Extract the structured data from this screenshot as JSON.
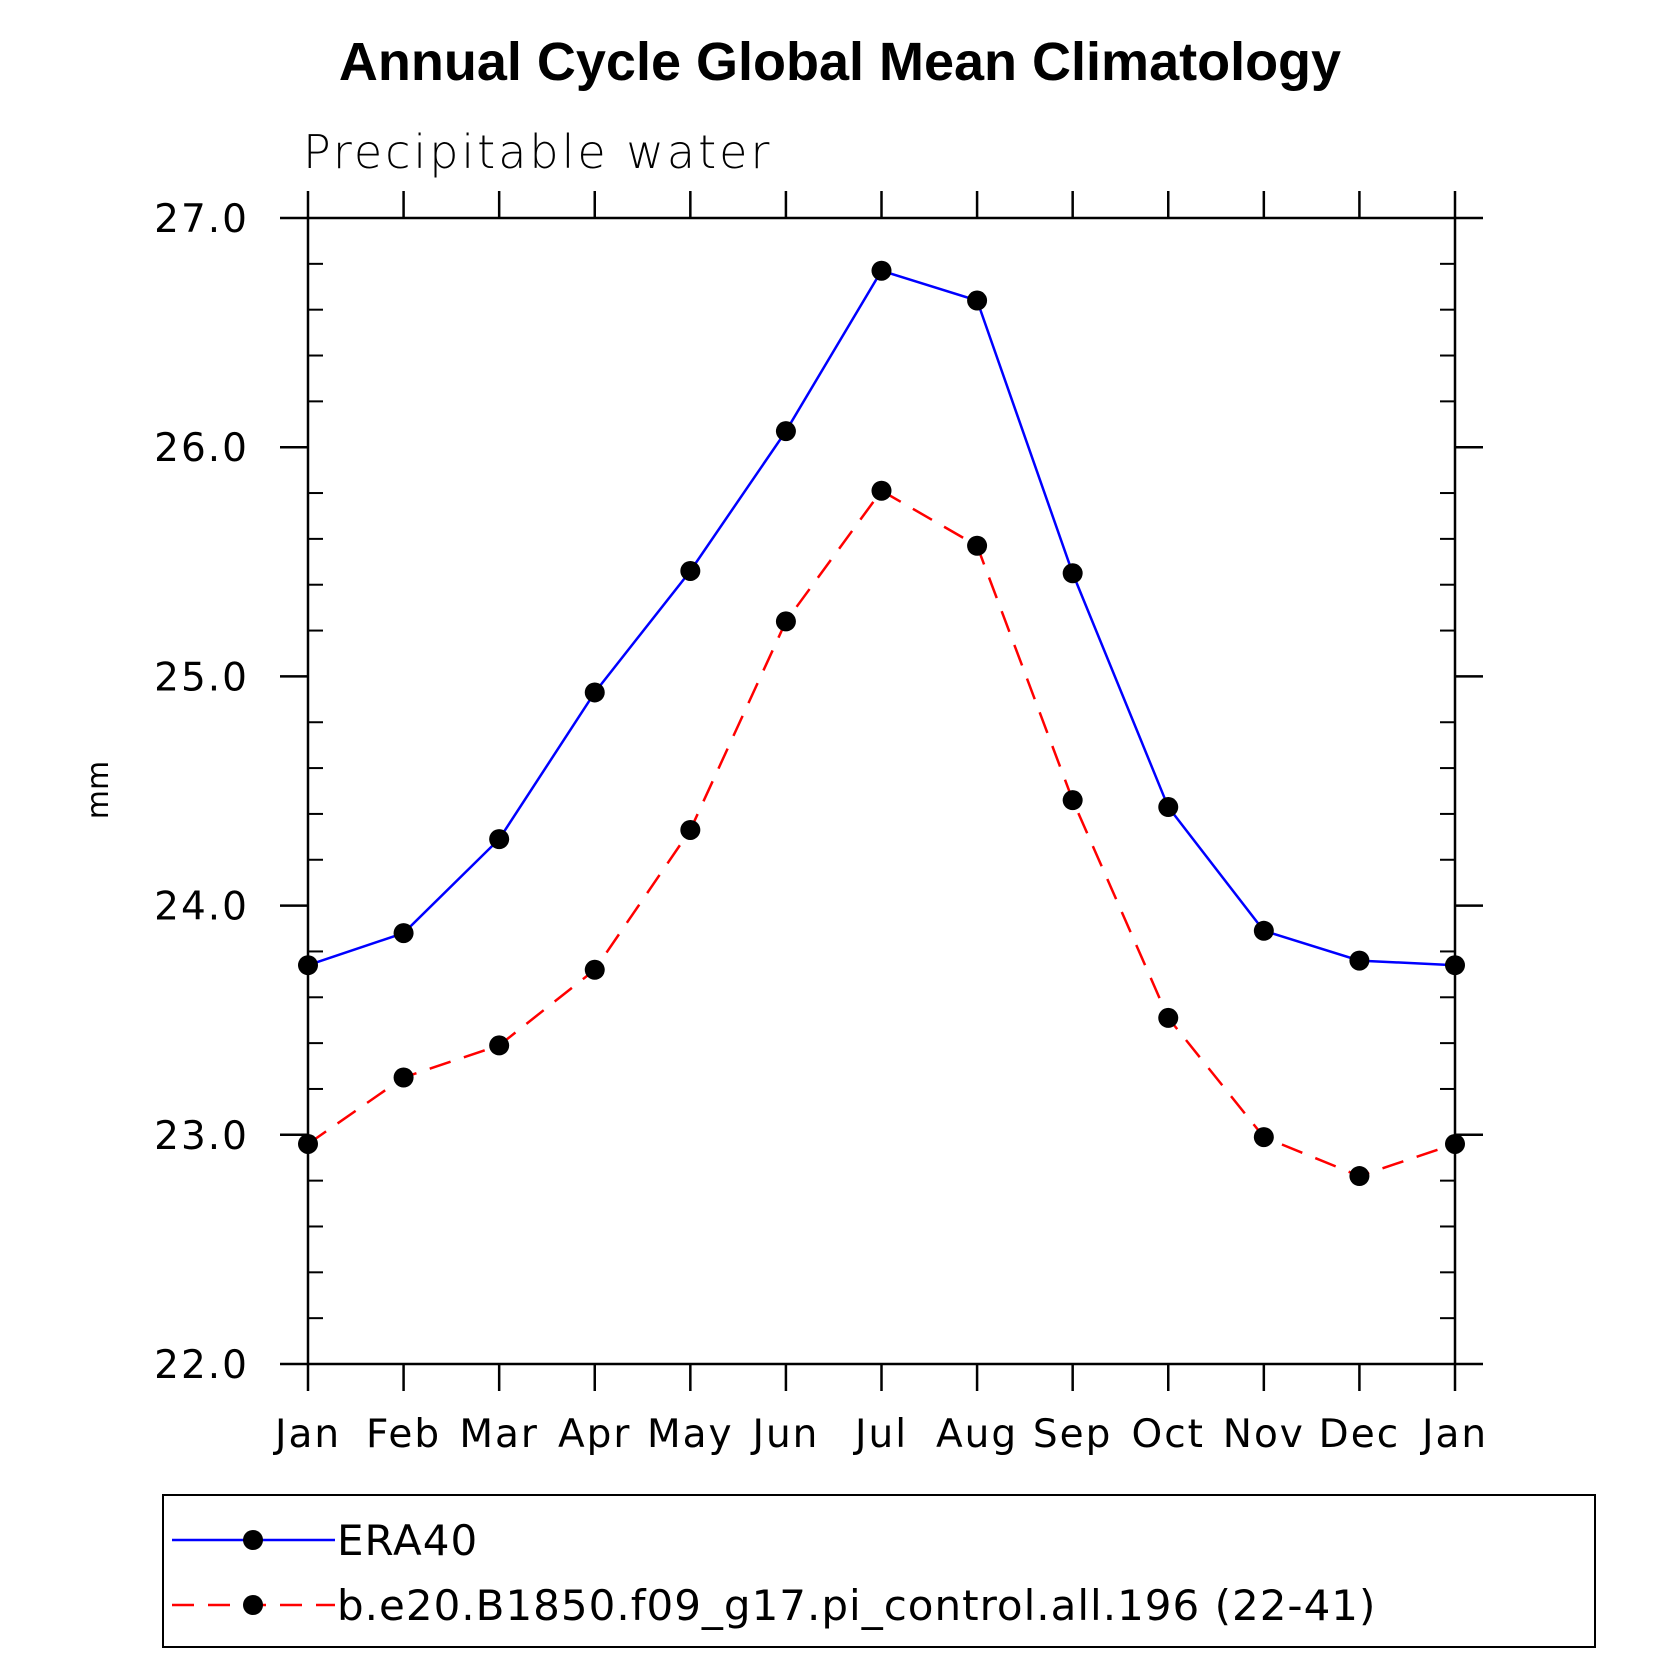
{
  "chart_data": {
    "type": "line",
    "title": "Annual Cycle Global Mean Climatology",
    "subtitle": "Precipitable water",
    "xlabel": "",
    "ylabel": "mm",
    "categories": [
      "Jan",
      "Feb",
      "Mar",
      "Apr",
      "May",
      "Jun",
      "Jul",
      "Aug",
      "Sep",
      "Oct",
      "Nov",
      "Dec",
      "Jan"
    ],
    "ylim": [
      22.0,
      27.0
    ],
    "yticks": [
      "22.0",
      "23.0",
      "24.0",
      "25.0",
      "26.0",
      "27.0"
    ],
    "grid": false,
    "legend_position": "bottom",
    "series": [
      {
        "name": "ERA40",
        "color": "#0000ff",
        "line_style": "solid",
        "marker": "filled-circle",
        "values": [
          23.74,
          23.88,
          24.29,
          24.93,
          25.46,
          26.07,
          26.77,
          26.64,
          25.45,
          24.43,
          23.89,
          23.76,
          23.74
        ]
      },
      {
        "name": "b.e20.B1850.f09_g17.pi_control.all.196 (22-41)",
        "color": "#ff0000",
        "line_style": "dashed",
        "marker": "filled-circle",
        "values": [
          22.96,
          23.25,
          23.39,
          23.72,
          24.33,
          25.24,
          25.81,
          25.57,
          24.46,
          23.51,
          22.99,
          22.82,
          22.96
        ]
      }
    ]
  }
}
